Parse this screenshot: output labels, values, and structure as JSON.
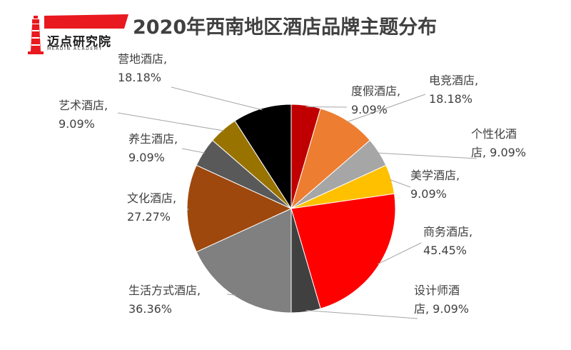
{
  "header": {
    "title": "2020年西南地区酒店品牌主题分布",
    "logo_cn": "迈点研究院",
    "logo_en": "MEADIN ACADEMY",
    "logo_color": "#e8191f"
  },
  "chart_data": {
    "type": "pie",
    "title": "2020年西南地区酒店品牌主题分布",
    "slices": [
      {
        "name": "度假酒店",
        "value": 9.09,
        "label": [
          "度假酒店,",
          "9.09%"
        ],
        "color": "#c00000"
      },
      {
        "name": "电竞酒店",
        "value": 18.18,
        "label": [
          "电竞酒店,",
          "18.18%"
        ],
        "color": "#ed7d31"
      },
      {
        "name": "个性化酒店",
        "value": 9.09,
        "label": [
          "个性化酒",
          "店, 9.09%"
        ],
        "color": "#a6a6a6"
      },
      {
        "name": "美学酒店",
        "value": 9.09,
        "label": [
          "美学酒店,",
          "9.09%"
        ],
        "color": "#ffc000"
      },
      {
        "name": "商务酒店",
        "value": 45.45,
        "label": [
          "商务酒店,",
          "45.45%"
        ],
        "color": "#ff0000"
      },
      {
        "name": "设计师酒店",
        "value": 9.09,
        "label": [
          "设计师酒",
          "店, 9.09%"
        ],
        "color": "#404040"
      },
      {
        "name": "生活方式酒店",
        "value": 36.36,
        "label": [
          "生活方式酒店,",
          "36.36%"
        ],
        "color": "#808080"
      },
      {
        "name": "文化酒店",
        "value": 27.27,
        "label": [
          "文化酒店,",
          "27.27%"
        ],
        "color": "#9e480e"
      },
      {
        "name": "养生酒店",
        "value": 9.09,
        "label": [
          "养生酒店,",
          "9.09%"
        ],
        "color": "#595959"
      },
      {
        "name": "艺术酒店",
        "value": 9.09,
        "label": [
          "艺术酒店,",
          "9.09%"
        ],
        "color": "#997300"
      },
      {
        "name": "营地酒店",
        "value": 18.18,
        "label": [
          "营地酒店,",
          "18.18%"
        ],
        "color": "#000000"
      }
    ]
  }
}
